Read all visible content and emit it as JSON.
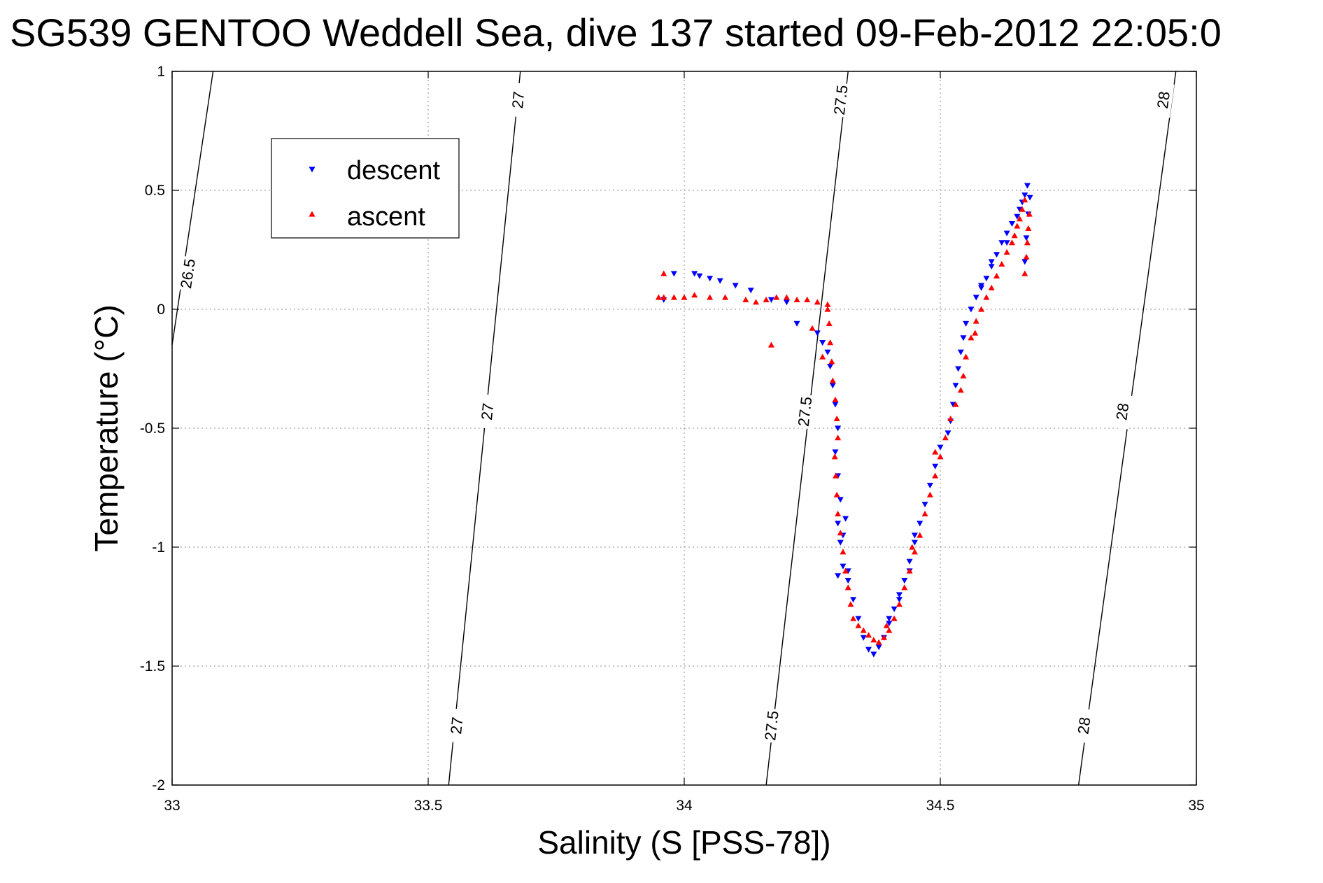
{
  "chart_data": {
    "type": "scatter",
    "title": "SG539 GENTOO Weddell Sea, dive 137 started 09-Feb-2012 22:05:0",
    "xlabel": "Salinity (S [PSS-78])",
    "ylabel": "Temperature (°C)",
    "xlim": [
      33,
      35
    ],
    "ylim": [
      -2,
      1
    ],
    "xticks": [
      33,
      33.5,
      34,
      34.5,
      35
    ],
    "yticks": [
      -2,
      -1.5,
      -1,
      -0.5,
      0,
      0.5,
      1
    ],
    "xtick_labels": [
      "33",
      "33.5",
      "34",
      "34.5",
      "35"
    ],
    "ytick_labels": [
      "-2",
      "-1.5",
      "-1",
      "-0.5",
      "0",
      "0.5",
      "1"
    ],
    "grid": true,
    "legend_position": "top-left",
    "legend": [
      {
        "name": "descent",
        "color": "#0000ff",
        "marker": "triangle-down"
      },
      {
        "name": "ascent",
        "color": "#ff0000",
        "marker": "triangle-up"
      }
    ],
    "contours": [
      {
        "label": "26.5",
        "points": [
          [
            33.0,
            -0.15
          ],
          [
            33.08,
            1.0
          ]
        ],
        "labels_at": [
          [
            33.03,
            0.15
          ]
        ]
      },
      {
        "label": "27",
        "points": [
          [
            33.54,
            -2.0
          ],
          [
            33.68,
            1.0
          ]
        ],
        "labels_at": [
          [
            33.555,
            -1.75
          ],
          [
            33.615,
            -0.43
          ],
          [
            33.675,
            0.88
          ]
        ]
      },
      {
        "label": "27.5",
        "points": [
          [
            34.16,
            -2.0
          ],
          [
            34.32,
            1.0
          ]
        ],
        "labels_at": [
          [
            34.17,
            -1.75
          ],
          [
            34.235,
            -0.43
          ],
          [
            34.305,
            0.88
          ]
        ]
      },
      {
        "label": "28",
        "points": [
          [
            34.77,
            -2.0
          ],
          [
            34.96,
            1.0
          ]
        ],
        "labels_at": [
          [
            34.78,
            -1.75
          ],
          [
            34.855,
            -0.43
          ],
          [
            34.935,
            0.88
          ]
        ]
      }
    ],
    "series": [
      {
        "name": "descent",
        "color": "#0000ff",
        "marker": "triangle-down",
        "points": [
          [
            34.67,
            0.52
          ],
          [
            34.665,
            0.48
          ],
          [
            34.66,
            0.45
          ],
          [
            34.655,
            0.42
          ],
          [
            34.65,
            0.39
          ],
          [
            34.64,
            0.36
          ],
          [
            34.63,
            0.32
          ],
          [
            34.62,
            0.28
          ],
          [
            34.61,
            0.23
          ],
          [
            34.6,
            0.18
          ],
          [
            34.59,
            0.13
          ],
          [
            34.58,
            0.09
          ],
          [
            34.57,
            0.05
          ],
          [
            34.56,
            0.0
          ],
          [
            34.55,
            -0.06
          ],
          [
            34.545,
            -0.12
          ],
          [
            34.54,
            -0.18
          ],
          [
            34.535,
            -0.25
          ],
          [
            34.53,
            -0.32
          ],
          [
            34.525,
            -0.4
          ],
          [
            34.52,
            -0.47
          ],
          [
            34.515,
            -0.52
          ],
          [
            34.5,
            -0.58
          ],
          [
            34.49,
            -0.66
          ],
          [
            34.48,
            -0.74
          ],
          [
            34.47,
            -0.82
          ],
          [
            34.46,
            -0.9
          ],
          [
            34.45,
            -0.98
          ],
          [
            34.44,
            -1.06
          ],
          [
            34.43,
            -1.14
          ],
          [
            34.42,
            -1.2
          ],
          [
            34.41,
            -1.26
          ],
          [
            34.4,
            -1.32
          ],
          [
            34.39,
            -1.38
          ],
          [
            34.38,
            -1.42
          ],
          [
            34.37,
            -1.45
          ],
          [
            34.36,
            -1.43
          ],
          [
            34.35,
            -1.38
          ],
          [
            34.34,
            -1.3
          ],
          [
            34.33,
            -1.22
          ],
          [
            34.32,
            -1.14
          ],
          [
            34.31,
            -1.08
          ],
          [
            34.305,
            -0.98
          ],
          [
            34.3,
            -0.9
          ],
          [
            34.305,
            -0.8
          ],
          [
            34.3,
            -0.7
          ],
          [
            34.295,
            -0.6
          ],
          [
            34.3,
            -0.5
          ],
          [
            34.295,
            -0.4
          ],
          [
            34.29,
            -0.32
          ],
          [
            34.285,
            -0.24
          ],
          [
            34.28,
            -0.18
          ],
          [
            34.27,
            -0.14
          ],
          [
            34.26,
            -0.1
          ],
          [
            34.22,
            -0.06
          ],
          [
            34.2,
            0.03
          ],
          [
            34.17,
            0.04
          ],
          [
            34.13,
            0.08
          ],
          [
            34.1,
            0.1
          ],
          [
            34.07,
            0.12
          ],
          [
            34.05,
            0.13
          ],
          [
            34.03,
            0.14
          ],
          [
            34.02,
            0.15
          ],
          [
            33.98,
            0.15
          ],
          [
            33.96,
            0.04
          ],
          [
            34.31,
            -0.95
          ],
          [
            34.315,
            -0.88
          ],
          [
            34.3,
            -1.12
          ],
          [
            34.32,
            -1.1
          ],
          [
            34.63,
            0.28
          ],
          [
            34.665,
            0.2
          ],
          [
            34.668,
            0.3
          ],
          [
            34.672,
            0.4
          ],
          [
            34.675,
            0.47
          ],
          [
            34.45,
            -0.95
          ],
          [
            34.44,
            -1.1
          ],
          [
            34.42,
            -1.22
          ],
          [
            34.4,
            -1.3
          ],
          [
            34.58,
            0.1
          ],
          [
            34.6,
            0.2
          ]
        ]
      },
      {
        "name": "ascent",
        "color": "#ff0000",
        "marker": "triangle-up",
        "points": [
          [
            34.665,
            0.46
          ],
          [
            34.66,
            0.42
          ],
          [
            34.655,
            0.38
          ],
          [
            34.65,
            0.35
          ],
          [
            34.645,
            0.31
          ],
          [
            34.64,
            0.28
          ],
          [
            34.63,
            0.24
          ],
          [
            34.62,
            0.19
          ],
          [
            34.61,
            0.14
          ],
          [
            34.6,
            0.09
          ],
          [
            34.59,
            0.05
          ],
          [
            34.58,
            0.0
          ],
          [
            34.57,
            -0.05
          ],
          [
            34.56,
            -0.12
          ],
          [
            34.55,
            -0.2
          ],
          [
            34.545,
            -0.28
          ],
          [
            34.54,
            -0.34
          ],
          [
            34.53,
            -0.4
          ],
          [
            34.52,
            -0.46
          ],
          [
            34.51,
            -0.54
          ],
          [
            34.5,
            -0.62
          ],
          [
            34.49,
            -0.7
          ],
          [
            34.48,
            -0.78
          ],
          [
            34.47,
            -0.86
          ],
          [
            34.46,
            -0.95
          ],
          [
            34.45,
            -1.02
          ],
          [
            34.44,
            -1.1
          ],
          [
            34.43,
            -1.17
          ],
          [
            34.42,
            -1.24
          ],
          [
            34.41,
            -1.3
          ],
          [
            34.4,
            -1.35
          ],
          [
            34.39,
            -1.38
          ],
          [
            34.38,
            -1.4
          ],
          [
            34.37,
            -1.39
          ],
          [
            34.36,
            -1.37
          ],
          [
            34.35,
            -1.35
          ],
          [
            34.34,
            -1.33
          ],
          [
            34.33,
            -1.3
          ],
          [
            34.325,
            -1.24
          ],
          [
            34.32,
            -1.17
          ],
          [
            34.315,
            -1.1
          ],
          [
            34.31,
            -1.02
          ],
          [
            34.305,
            -0.94
          ],
          [
            34.3,
            -0.86
          ],
          [
            34.298,
            -0.78
          ],
          [
            34.296,
            -0.7
          ],
          [
            34.294,
            -0.62
          ],
          [
            34.3,
            -0.54
          ],
          [
            34.298,
            -0.46
          ],
          [
            34.295,
            -0.38
          ],
          [
            34.29,
            -0.3
          ],
          [
            34.288,
            -0.22
          ],
          [
            34.285,
            -0.14
          ],
          [
            34.283,
            -0.06
          ],
          [
            34.28,
            0.0
          ],
          [
            34.28,
            0.02
          ],
          [
            34.26,
            0.03
          ],
          [
            34.24,
            0.04
          ],
          [
            34.22,
            0.04
          ],
          [
            34.2,
            0.05
          ],
          [
            34.18,
            0.05
          ],
          [
            34.16,
            0.04
          ],
          [
            34.14,
            0.03
          ],
          [
            34.12,
            0.04
          ],
          [
            34.08,
            0.05
          ],
          [
            34.05,
            0.05
          ],
          [
            34.02,
            0.06
          ],
          [
            34.0,
            0.05
          ],
          [
            33.98,
            0.05
          ],
          [
            33.96,
            0.05
          ],
          [
            33.95,
            0.05
          ],
          [
            33.96,
            0.15
          ],
          [
            34.17,
            -0.15
          ],
          [
            34.25,
            -0.08
          ],
          [
            34.27,
            -0.2
          ],
          [
            34.665,
            0.15
          ],
          [
            34.668,
            0.22
          ],
          [
            34.67,
            0.28
          ],
          [
            34.672,
            0.34
          ],
          [
            34.674,
            0.4
          ],
          [
            34.568,
            -0.1
          ],
          [
            34.49,
            -0.6
          ],
          [
            34.445,
            -1.0
          ],
          [
            34.395,
            -1.33
          ]
        ]
      }
    ]
  }
}
